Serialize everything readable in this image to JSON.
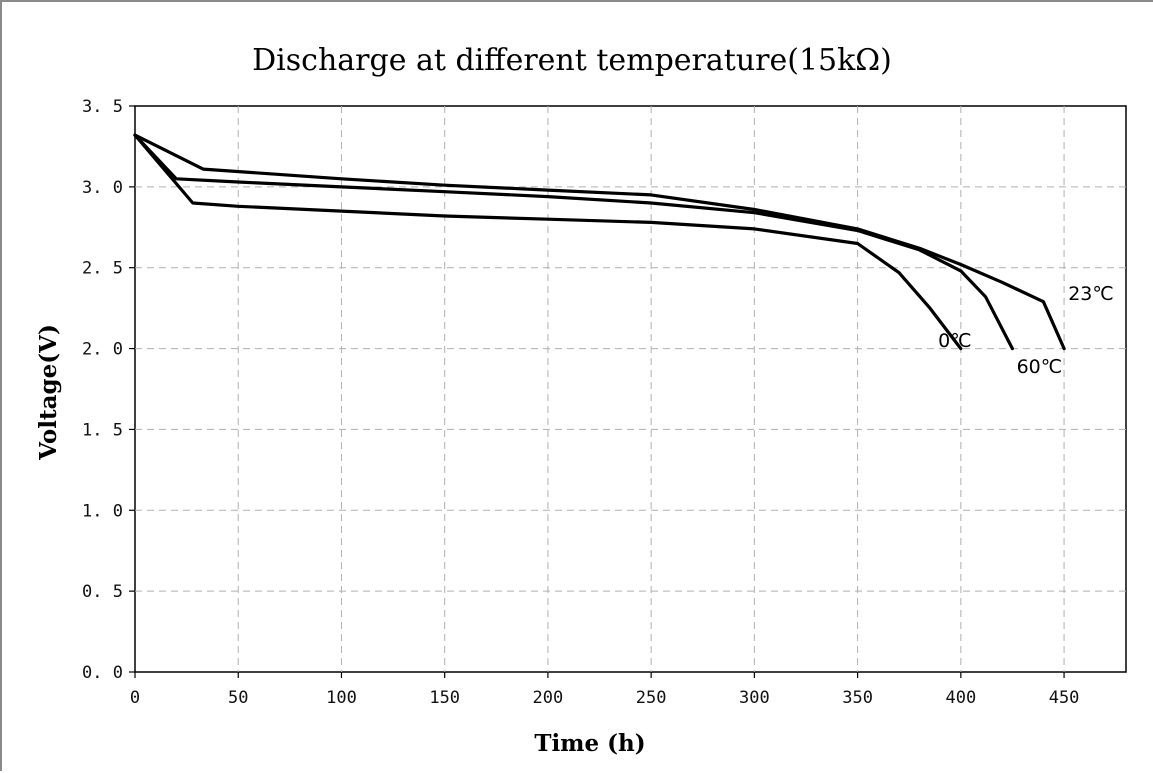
{
  "chart_data": {
    "type": "line",
    "title": "Discharge at different temperature(15kΩ)",
    "xlabel": "Time (h)",
    "ylabel": "Voltage(V)",
    "xlim": [
      0,
      480
    ],
    "ylim": [
      0,
      3.5
    ],
    "xticks": [
      0,
      50,
      100,
      150,
      200,
      250,
      300,
      350,
      400,
      450
    ],
    "yticks": [
      0.0,
      0.5,
      1.0,
      1.5,
      2.0,
      2.5,
      3.0,
      3.5
    ],
    "xtick_labels": [
      "0",
      "50",
      "100",
      "150",
      "200",
      "250",
      "300",
      "350",
      "400",
      "450"
    ],
    "ytick_labels": [
      "0. 0",
      "0. 5",
      "1. 0",
      "1. 5",
      "2. 0",
      "2. 5",
      "3. 0",
      "3. 5"
    ],
    "grid": true,
    "legend": "none",
    "line_color": "#000000",
    "series": [
      {
        "name": "23℃",
        "points": [
          [
            0,
            3.32
          ],
          [
            33,
            3.11
          ],
          [
            100,
            3.05
          ],
          [
            150,
            3.01
          ],
          [
            200,
            2.98
          ],
          [
            250,
            2.95
          ],
          [
            300,
            2.86
          ],
          [
            350,
            2.74
          ],
          [
            380,
            2.62
          ],
          [
            400,
            2.52
          ],
          [
            420,
            2.41
          ],
          [
            440,
            2.29
          ],
          [
            450,
            2.0
          ]
        ]
      },
      {
        "name": "60℃",
        "points": [
          [
            0,
            3.32
          ],
          [
            20,
            3.05
          ],
          [
            50,
            3.03
          ],
          [
            100,
            3.0
          ],
          [
            150,
            2.97
          ],
          [
            200,
            2.94
          ],
          [
            250,
            2.9
          ],
          [
            300,
            2.84
          ],
          [
            350,
            2.73
          ],
          [
            380,
            2.61
          ],
          [
            400,
            2.48
          ],
          [
            412,
            2.32
          ],
          [
            425,
            2.0
          ]
        ]
      },
      {
        "name": "0℃",
        "points": [
          [
            0,
            3.32
          ],
          [
            28,
            2.9
          ],
          [
            50,
            2.88
          ],
          [
            100,
            2.85
          ],
          [
            150,
            2.82
          ],
          [
            200,
            2.8
          ],
          [
            250,
            2.78
          ],
          [
            300,
            2.74
          ],
          [
            350,
            2.65
          ],
          [
            370,
            2.47
          ],
          [
            385,
            2.25
          ],
          [
            400,
            2.0
          ]
        ]
      }
    ],
    "annotations": [
      {
        "text": "23℃",
        "x": 452,
        "y": 2.3
      },
      {
        "text": "60℃",
        "x": 427,
        "y": 1.85
      },
      {
        "text": "0℃",
        "x": 389,
        "y": 2.01
      }
    ]
  }
}
